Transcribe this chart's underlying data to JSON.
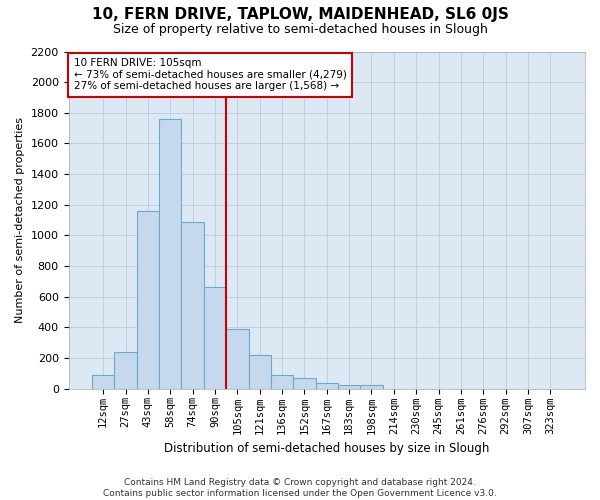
{
  "title": "10, FERN DRIVE, TAPLOW, MAIDENHEAD, SL6 0JS",
  "subtitle": "Size of property relative to semi-detached houses in Slough",
  "xlabel": "Distribution of semi-detached houses by size in Slough",
  "ylabel": "Number of semi-detached properties",
  "bar_categories": [
    "12sqm",
    "27sqm",
    "43sqm",
    "58sqm",
    "74sqm",
    "90sqm",
    "105sqm",
    "121sqm",
    "136sqm",
    "152sqm",
    "167sqm",
    "183sqm",
    "198sqm",
    "214sqm",
    "230sqm",
    "245sqm",
    "261sqm",
    "276sqm",
    "292sqm",
    "307sqm",
    "323sqm"
  ],
  "bar_values": [
    90,
    240,
    1160,
    1760,
    1090,
    660,
    390,
    220,
    90,
    70,
    35,
    25,
    20,
    0,
    0,
    0,
    0,
    0,
    0,
    0,
    0
  ],
  "bar_color": "#c5d8ee",
  "bar_edge_color": "#6baad0",
  "highlight_index": 6,
  "highlight_color": "#cc0000",
  "ylim": [
    0,
    2200
  ],
  "annotation_title": "10 FERN DRIVE: 105sqm",
  "annotation_line1": "← 73% of semi-detached houses are smaller (4,279)",
  "annotation_line2": "27% of semi-detached houses are larger (1,568) →",
  "annotation_box_color": "#ffffff",
  "annotation_box_edge": "#cc0000",
  "grid_color": "#c0d0e0",
  "plot_bg_color": "#dce9f5",
  "footer_line1": "Contains HM Land Registry data © Crown copyright and database right 2024.",
  "footer_line2": "Contains public sector information licensed under the Open Government Licence v3.0."
}
